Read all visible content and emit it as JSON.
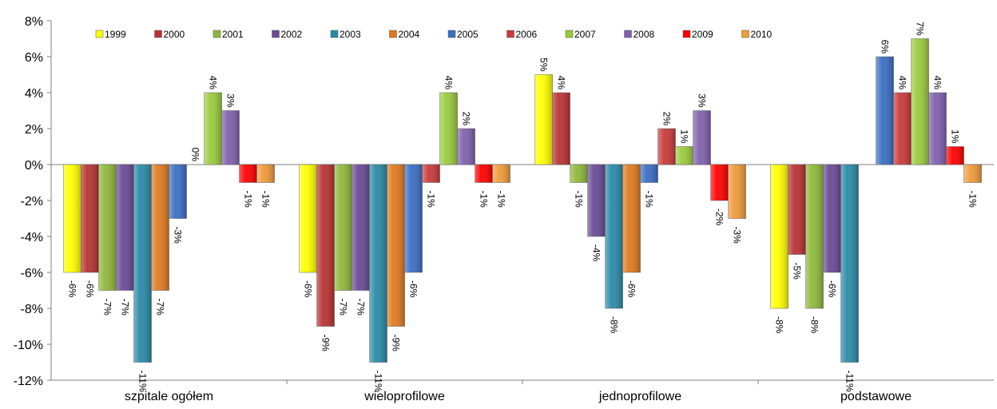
{
  "chart_data": {
    "type": "bar",
    "title": "",
    "xlabel": "",
    "ylabel": "",
    "ylim": [
      -12,
      8
    ],
    "ytick_step": 2,
    "legend_position": "top",
    "categories": [
      "szpitale ogółem",
      "wieloprofilowe",
      "jednoprofilowe",
      "podstawowe"
    ],
    "series": [
      {
        "name": "1999",
        "color": "#ffff00",
        "values": [
          -6,
          -6,
          5,
          -8
        ]
      },
      {
        "name": "2000",
        "color": "#b83232",
        "values": [
          -6,
          -9,
          4,
          -5
        ]
      },
      {
        "name": "2001",
        "color": "#8fb83a",
        "values": [
          -7,
          -7,
          -1,
          -8
        ]
      },
      {
        "name": "2002",
        "color": "#6a4a96",
        "values": [
          -7,
          -7,
          -4,
          -6
        ]
      },
      {
        "name": "2003",
        "color": "#2a8aa6",
        "values": [
          -11,
          -11,
          -8,
          -11
        ]
      },
      {
        "name": "2004",
        "color": "#e07a20",
        "values": [
          -7,
          -9,
          -6,
          null
        ]
      },
      {
        "name": "2005",
        "color": "#3a6fc4",
        "values": [
          -3,
          -6,
          -1,
          6
        ]
      },
      {
        "name": "2006",
        "color": "#c93a3a",
        "values": [
          0,
          -1,
          2,
          4
        ]
      },
      {
        "name": "2007",
        "color": "#9acb3c",
        "values": [
          4,
          4,
          1,
          7
        ]
      },
      {
        "name": "2008",
        "color": "#8060ad",
        "values": [
          3,
          2,
          3,
          4
        ]
      },
      {
        "name": "2009",
        "color": "#ff0000",
        "values": [
          -1,
          -1,
          -2,
          1
        ]
      },
      {
        "name": "2010",
        "color": "#f09a3a",
        "values": [
          -1,
          -1,
          -3,
          -1
        ]
      }
    ],
    "data_labels": [
      [
        "-6%",
        "-6%",
        "5%",
        "-8%"
      ],
      [
        "-6%",
        "-9%",
        "4%",
        "-5%"
      ],
      [
        "-7%",
        "-7%",
        "-1%",
        "-8%"
      ],
      [
        "-7%",
        "-7%",
        "-4%",
        "-6%"
      ],
      [
        "-11%",
        "-11%",
        "-8%",
        "-11%"
      ],
      [
        "-7%",
        "-9%",
        "-6%",
        ""
      ],
      [
        "-3%",
        "-6%",
        "-1%",
        "6%"
      ],
      [
        "0%",
        "-1%",
        "2%",
        "4%"
      ],
      [
        "4%",
        "4%",
        "1%",
        "7%"
      ],
      [
        "3%",
        "2%",
        "3%",
        "4%"
      ],
      [
        "-1%",
        "-1%",
        "-2%",
        "1%"
      ],
      [
        "-1%",
        "-1%",
        "-3%",
        "-1%"
      ]
    ],
    "y_ticks": [
      "8%",
      "6%",
      "4%",
      "2%",
      "0%",
      "-2%",
      "-4%",
      "-6%",
      "-8%",
      "-10%",
      "-12%"
    ]
  }
}
